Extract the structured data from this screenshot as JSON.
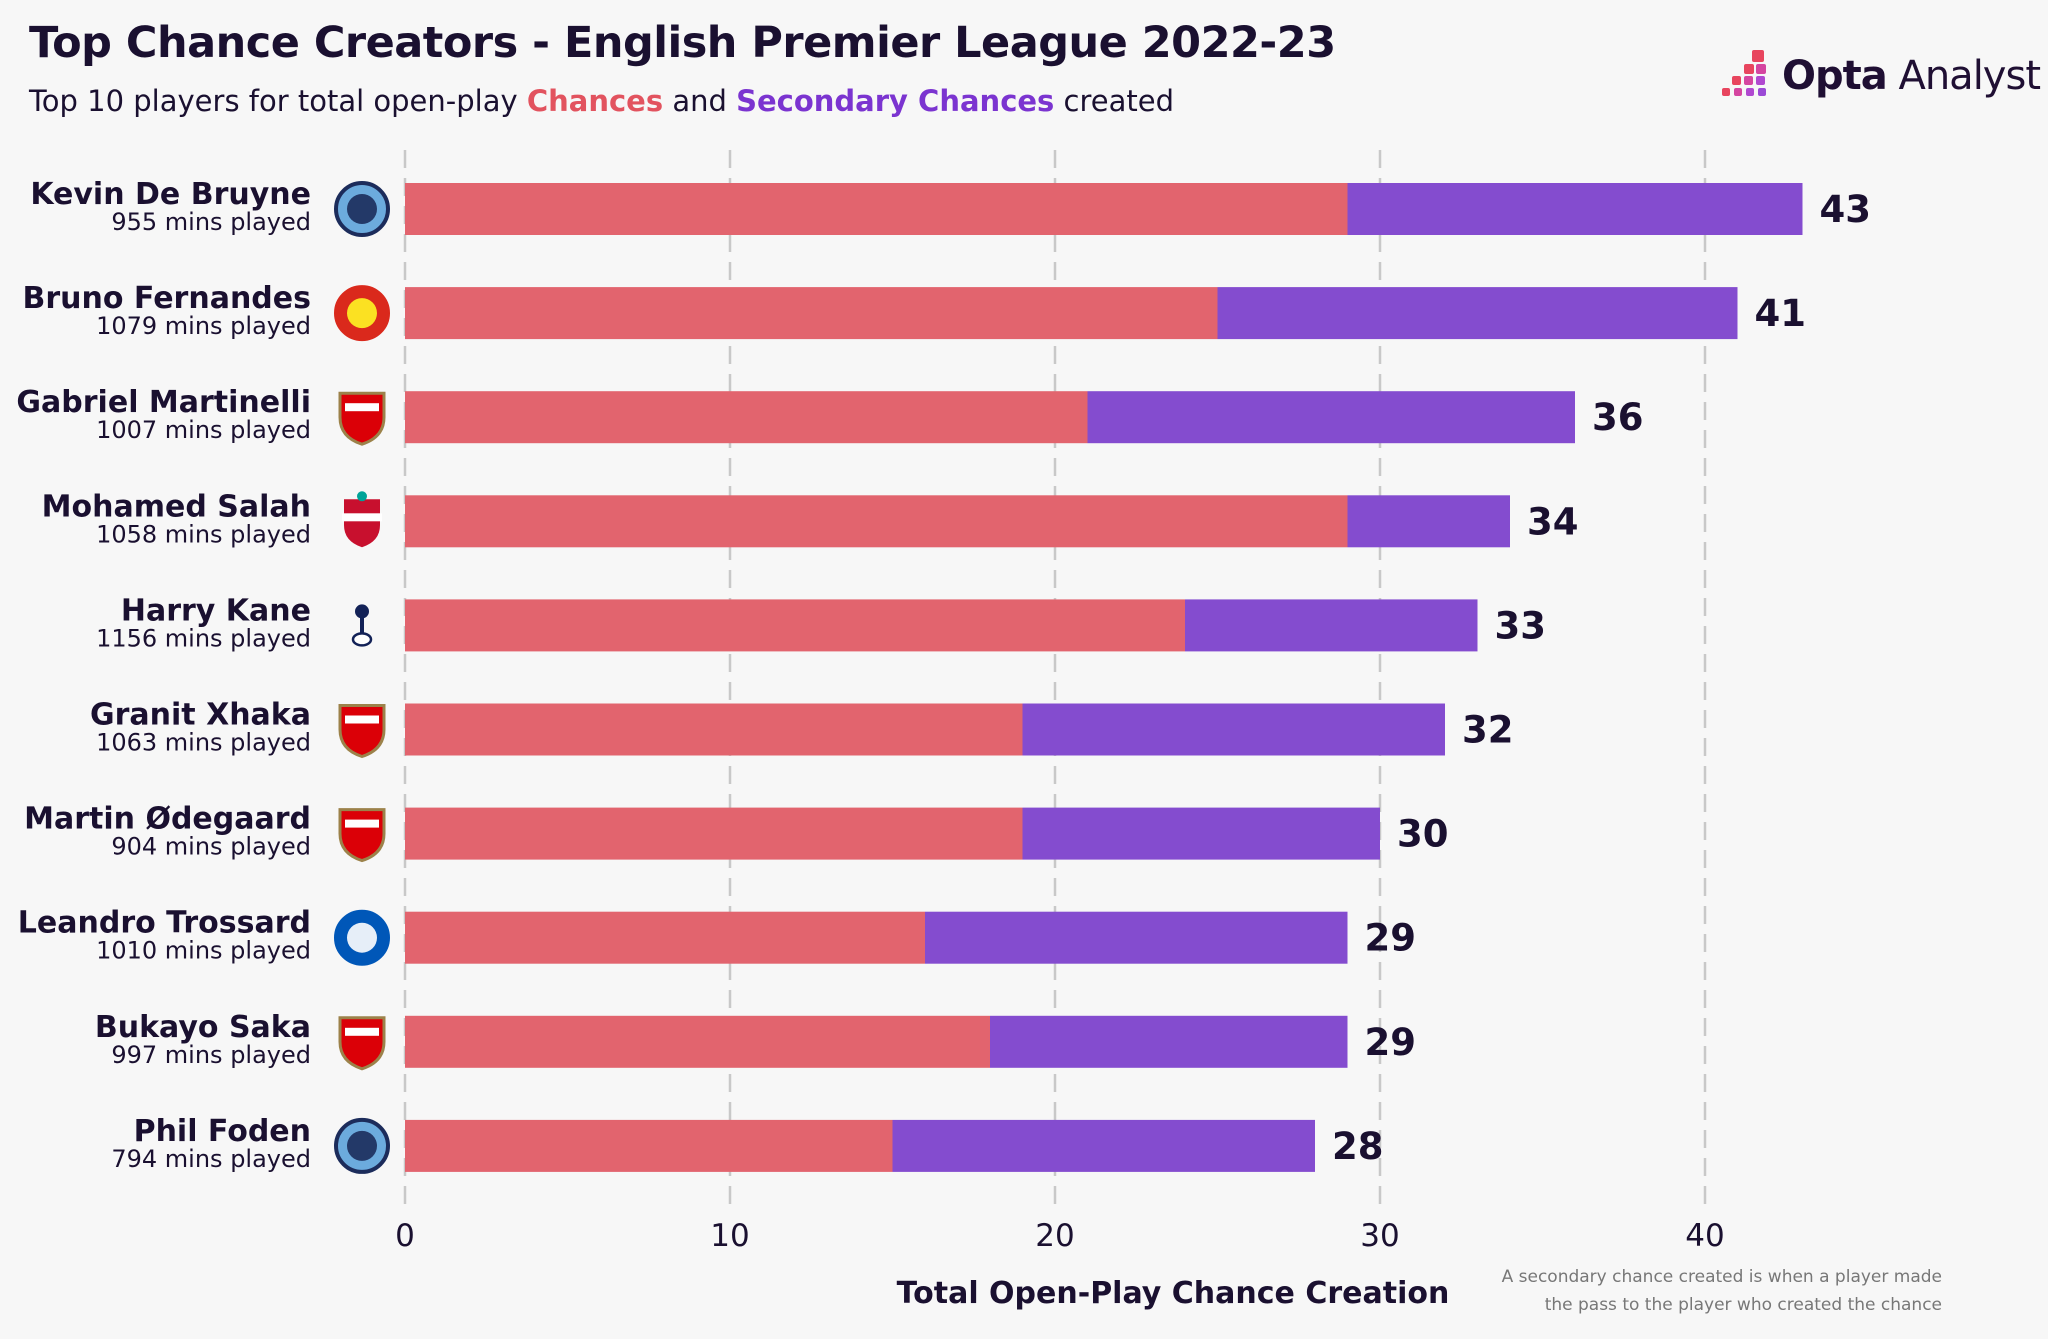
{
  "header": {
    "title": "Top Chance Creators - English Premier League 2022-23",
    "subtitle_prefix": "Top 10 players for total open-play ",
    "subtitle_chances": "Chances",
    "subtitle_and": " and ",
    "subtitle_secondary": "Secondary Chances",
    "subtitle_suffix": " created"
  },
  "logo": {
    "bold": "Opta",
    "light": " Analyst"
  },
  "footnote": {
    "line1": "A secondary chance created is when a player made",
    "line2": "the pass to the player who created the chance"
  },
  "chart_data": {
    "type": "bar",
    "orientation": "horizontal",
    "stacked": true,
    "xlabel": "Total Open-Play Chance Creation",
    "xlim": [
      0,
      45
    ],
    "xticks": [
      0,
      10,
      20,
      30,
      40
    ],
    "grid": "vertical dashed",
    "colors": {
      "chances": "#e2646e",
      "secondary": "#844ccf"
    },
    "categories": [
      "Kevin De Bruyne",
      "Bruno Fernandes",
      "Gabriel Martinelli",
      "Mohamed Salah",
      "Harry Kane",
      "Granit Xhaka",
      "Martin Ødegaard",
      "Leandro Trossard",
      "Bukayo Saka",
      "Phil Foden"
    ],
    "minutes": [
      "955 mins played",
      "1079 mins played",
      "1007 mins played",
      "1058 mins played",
      "1156 mins played",
      "1063 mins played",
      "904 mins played",
      "1010 mins played",
      "997 mins played",
      "794 mins played"
    ],
    "clubs": [
      "man-city-crest",
      "man-utd-crest",
      "arsenal-crest",
      "liverpool-crest",
      "tottenham-crest",
      "arsenal-crest",
      "arsenal-crest",
      "brighton-crest",
      "arsenal-crest",
      "man-city-crest"
    ],
    "series": [
      {
        "name": "Chances",
        "values": [
          29,
          25,
          21,
          29,
          24,
          19,
          19,
          16,
          18,
          15
        ]
      },
      {
        "name": "Secondary Chances",
        "values": [
          14,
          16,
          15,
          5,
          9,
          13,
          11,
          13,
          11,
          13
        ]
      }
    ],
    "totals": [
      43,
      41,
      36,
      34,
      33,
      32,
      30,
      29,
      29,
      28
    ]
  }
}
